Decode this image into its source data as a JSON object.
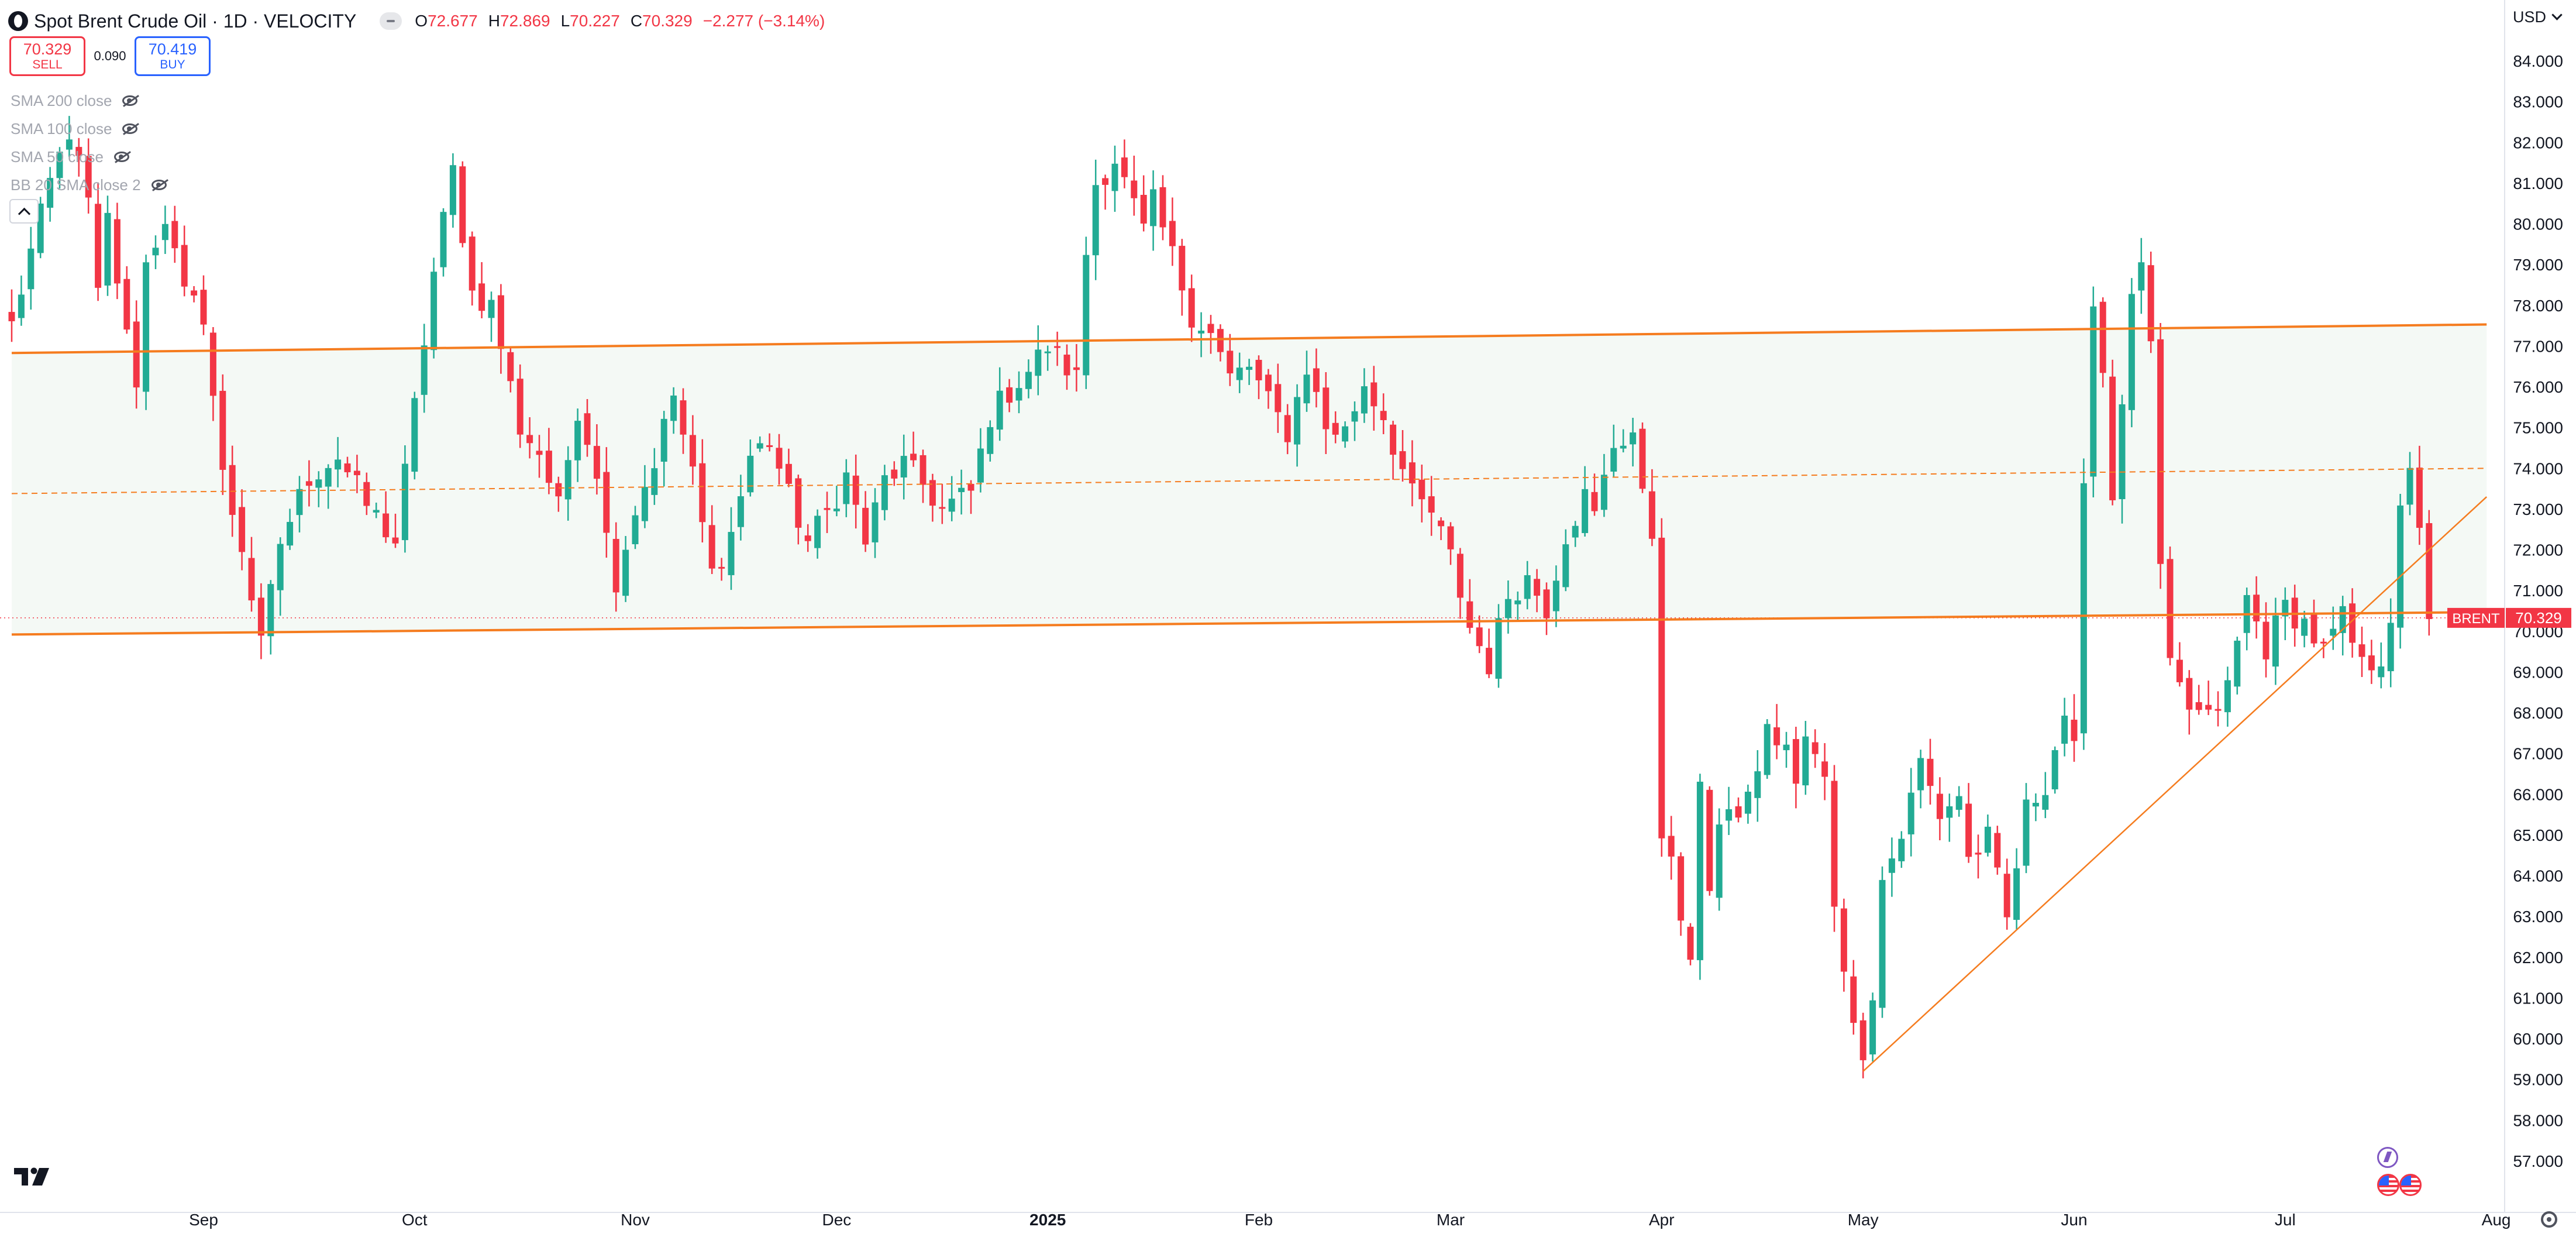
{
  "header": {
    "title": "Spot Brent Crude Oil · 1D · VELOCITY",
    "open_key": "O",
    "open": "72.677",
    "high_key": "H",
    "high": "72.869",
    "low_key": "L",
    "low": "70.227",
    "close_key": "C",
    "close": "70.329",
    "change": "−2.277 (−3.14%)"
  },
  "trade": {
    "sell_price": "70.329",
    "sell_label": "SELL",
    "spread": "0.090",
    "buy_price": "70.419",
    "buy_label": "BUY"
  },
  "indicators": [
    {
      "label": "SMA 200 close"
    },
    {
      "label": "SMA 100 close"
    },
    {
      "label": "SMA 50 close"
    },
    {
      "label": "BB 20 SMA close 2"
    }
  ],
  "currency": "USD",
  "colors": {
    "up": "#22ab94",
    "down": "#f23645",
    "accent": "#f57c1f",
    "channel_fill": "#f4f9f5",
    "text": "#131722"
  },
  "chart_data": {
    "type": "candlestick",
    "title": "Spot Brent Crude Oil · 1D · VELOCITY",
    "ylim": [
      56.2,
      85.2
    ],
    "y_ticks": [
      57,
      58,
      59,
      60,
      61,
      62,
      63,
      64,
      65,
      66,
      67,
      68,
      69,
      70,
      71,
      72,
      73,
      74,
      75,
      76,
      77,
      78,
      79,
      80,
      81,
      82,
      83,
      84
    ],
    "y_tick_labels": [
      "57.000",
      "58.000",
      "59.000",
      "60.000",
      "61.000",
      "62.000",
      "63.000",
      "64.000",
      "65.000",
      "66.000",
      "67.000",
      "68.000",
      "69.000",
      "70.000",
      "71.000",
      "72.000",
      "73.000",
      "74.000",
      "75.000",
      "76.000",
      "77.000",
      "78.000",
      "79.000",
      "80.000",
      "81.000",
      "82.000",
      "83.000",
      "84.000"
    ],
    "x_range": [
      0,
      258
    ],
    "x_ticks": [
      {
        "x": 20,
        "label": "Sep",
        "bold": false
      },
      {
        "x": 42,
        "label": "Oct",
        "bold": false
      },
      {
        "x": 65,
        "label": "Nov",
        "bold": false
      },
      {
        "x": 86,
        "label": "Dec",
        "bold": false
      },
      {
        "x": 108,
        "label": "2025",
        "bold": true
      },
      {
        "x": 130,
        "label": "Feb",
        "bold": false
      },
      {
        "x": 150,
        "label": "Mar",
        "bold": false
      },
      {
        "x": 172,
        "label": "Apr",
        "bold": false
      },
      {
        "x": 193,
        "label": "May",
        "bold": false
      },
      {
        "x": 215,
        "label": "Jun",
        "bold": false
      },
      {
        "x": 237,
        "label": "Jul",
        "bold": false
      },
      {
        "x": 259,
        "label": "Aug",
        "bold": false
      }
    ],
    "anchors": [
      [
        0,
        77.5
      ],
      [
        2,
        79.3
      ],
      [
        4,
        81.0
      ],
      [
        6,
        82.3
      ],
      [
        8,
        80.5
      ],
      [
        9,
        78.2
      ],
      [
        10,
        80.1
      ],
      [
        12,
        77.2
      ],
      [
        13,
        76.2
      ],
      [
        14,
        79.0
      ],
      [
        16,
        80.2
      ],
      [
        18,
        78.2
      ],
      [
        20,
        77.8
      ],
      [
        22,
        73.8
      ],
      [
        24,
        72.1
      ],
      [
        26,
        69.6
      ],
      [
        28,
        72.2
      ],
      [
        31,
        73.8
      ],
      [
        34,
        74.3
      ],
      [
        37,
        73.1
      ],
      [
        40,
        72.2
      ],
      [
        42,
        75.5
      ],
      [
        44,
        78.8
      ],
      [
        46,
        81.3
      ],
      [
        48,
        78.3
      ],
      [
        50,
        78.0
      ],
      [
        52,
        76.0
      ],
      [
        53,
        75.0
      ],
      [
        55,
        74.4
      ],
      [
        57,
        73.0
      ],
      [
        59,
        75.5
      ],
      [
        61,
        74.0
      ],
      [
        62,
        72.3
      ],
      [
        63,
        71.3
      ],
      [
        65,
        73.0
      ],
      [
        67,
        74.2
      ],
      [
        69,
        75.8
      ],
      [
        71,
        73.8
      ],
      [
        73,
        71.4
      ],
      [
        75,
        72.4
      ],
      [
        77,
        74.3
      ],
      [
        79,
        74.7
      ],
      [
        81,
        73.3
      ],
      [
        83,
        72.2
      ],
      [
        85,
        72.9
      ],
      [
        87,
        73.8
      ],
      [
        89,
        72.2
      ],
      [
        91,
        73.7
      ],
      [
        93,
        74.1
      ],
      [
        95,
        73.6
      ],
      [
        97,
        73.0
      ],
      [
        100,
        73.4
      ],
      [
        102,
        75.3
      ],
      [
        104,
        75.9
      ],
      [
        106,
        76.4
      ],
      [
        108,
        77.0
      ],
      [
        111,
        76.2
      ],
      [
        112,
        79.3
      ],
      [
        113,
        81.0
      ],
      [
        115,
        81.6
      ],
      [
        116,
        81.0
      ],
      [
        118,
        79.8
      ],
      [
        119,
        80.5
      ],
      [
        121,
        79.2
      ],
      [
        123,
        77.8
      ],
      [
        125,
        77.3
      ],
      [
        127,
        76.2
      ],
      [
        129,
        76.5
      ],
      [
        131,
        75.6
      ],
      [
        133,
        74.9
      ],
      [
        135,
        76.5
      ],
      [
        137,
        75.0
      ],
      [
        139,
        74.9
      ],
      [
        141,
        76.1
      ],
      [
        143,
        75.3
      ],
      [
        144,
        74.6
      ],
      [
        146,
        73.3
      ],
      [
        148,
        72.9
      ],
      [
        150,
        71.8
      ],
      [
        152,
        70.1
      ],
      [
        154,
        69.2
      ],
      [
        156,
        70.9
      ],
      [
        158,
        71.3
      ],
      [
        160,
        70.6
      ],
      [
        162,
        72.4
      ],
      [
        164,
        73.3
      ],
      [
        165,
        72.8
      ],
      [
        167,
        74.6
      ],
      [
        169,
        74.9
      ],
      [
        170,
        73.2
      ],
      [
        171,
        72.4
      ],
      [
        172,
        65.2
      ],
      [
        173,
        64.2
      ],
      [
        174,
        63.0
      ],
      [
        175,
        61.6
      ],
      [
        176,
        66.5
      ],
      [
        177,
        63.8
      ],
      [
        178,
        65.2
      ],
      [
        179,
        65.3
      ],
      [
        181,
        65.9
      ],
      [
        183,
        67.5
      ],
      [
        185,
        67.2
      ],
      [
        186,
        66.1
      ],
      [
        187,
        67.4
      ],
      [
        189,
        66.3
      ],
      [
        190,
        63.4
      ],
      [
        191,
        61.9
      ],
      [
        192,
        60.2
      ],
      [
        193,
        59.8
      ],
      [
        194,
        61.2
      ],
      [
        195,
        63.9
      ],
      [
        197,
        65.0
      ],
      [
        199,
        66.8
      ],
      [
        201,
        65.5
      ],
      [
        203,
        66.0
      ],
      [
        204,
        64.4
      ],
      [
        206,
        64.9
      ],
      [
        208,
        62.9
      ],
      [
        210,
        65.6
      ],
      [
        212,
        66.3
      ],
      [
        214,
        68.0
      ],
      [
        215,
        67.0
      ],
      [
        216,
        73.3
      ],
      [
        217,
        78.3
      ],
      [
        218,
        76.4
      ],
      [
        219,
        73.3
      ],
      [
        220,
        75.8
      ],
      [
        221,
        78.0
      ],
      [
        222,
        79.2
      ],
      [
        223,
        76.8
      ],
      [
        224,
        71.5
      ],
      [
        225,
        69.0
      ],
      [
        227,
        68.1
      ],
      [
        229,
        67.8
      ],
      [
        231,
        68.6
      ],
      [
        233,
        70.8
      ],
      [
        235,
        69.6
      ],
      [
        237,
        70.6
      ],
      [
        239,
        70.2
      ],
      [
        241,
        69.5
      ],
      [
        243,
        70.3
      ],
      [
        245,
        69.1
      ],
      [
        247,
        69.4
      ],
      [
        248,
        70.4
      ],
      [
        249,
        72.8
      ],
      [
        250,
        73.8
      ],
      [
        251,
        72.7
      ],
      [
        252,
        70.3
      ]
    ],
    "last_price": 70.329,
    "last_price_label": "70.329",
    "last_price_name": "BRENT",
    "channel_upper": [
      [
        0,
        76.83
      ],
      [
        258,
        77.53
      ]
    ],
    "channel_lower": [
      [
        0,
        69.92
      ],
      [
        258,
        70.47
      ]
    ],
    "channel_mid": [
      [
        0,
        73.38
      ],
      [
        258,
        74.0
      ]
    ],
    "trendline": [
      [
        193,
        59.2
      ],
      [
        258,
        73.3
      ]
    ]
  }
}
